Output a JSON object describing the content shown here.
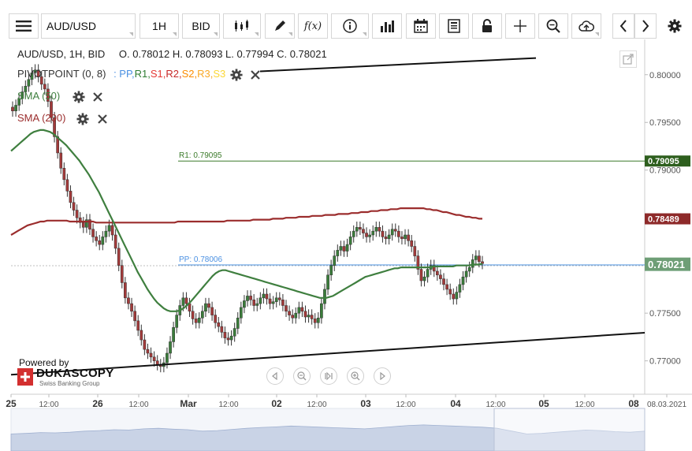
{
  "toolbar": {
    "symbol": "AUD/USD",
    "timeframe": "1H",
    "price_type": "BID",
    "fx_label": "f(x)"
  },
  "header": {
    "title": "AUD/USD, 1H, BID",
    "ohlc": "O. 0.78012 H. 0.78093 L. 0.77994 C. 0.78021"
  },
  "legend": {
    "pivot_name": "PIVOTPOINT (0, 8)",
    "pivot_parts": [
      {
        "label": ": PP,",
        "color": "#4a90e2"
      },
      {
        "label": " R1,",
        "color": "#2e7d32"
      },
      {
        "label": " S1,",
        "color": "#e53935"
      },
      {
        "label": " R2,",
        "color": "#c62828"
      },
      {
        "label": " S2,",
        "color": "#fb8c00"
      },
      {
        "label": " R3,",
        "color": "#f9a825"
      },
      {
        "label": " S3",
        "color": "#fdd835"
      }
    ],
    "sma50": "SMA (50)",
    "sma200": "SMA (200)"
  },
  "levels": {
    "r1_label": "R1: 0.79095",
    "pp_label": "PP: 0.78006"
  },
  "badges": {
    "r1": "0.79095",
    "sma200": "0.78489",
    "last": "0.78021"
  },
  "branding": {
    "powered_by": "Powered by",
    "brand": "DUKASCOPY",
    "tagline": "Swiss Banking Group"
  },
  "colors": {
    "up": "#3a7d3a",
    "down": "#a33a3a",
    "sma50": "#3f7f3f",
    "sma200": "#9b2d2d",
    "pp": "#4a90e2",
    "r1": "#3b7a2a"
  },
  "chart_data": {
    "type": "candlestick",
    "y_ticks": [
      "0.80000",
      "0.79500",
      "0.79000",
      "0.78500",
      "0.78000",
      "0.77500",
      "0.77000"
    ],
    "x_ticks": [
      "25",
      "12:00",
      "26",
      "12:00",
      "Mar",
      "12:00",
      "02",
      "12:00",
      "03",
      "12:00",
      "04",
      "12:00",
      "05",
      "12:00",
      "08",
      "08.03.2021"
    ],
    "ylim": [
      0.7665,
      0.8037
    ],
    "r1": 0.79095,
    "pp": 0.78006,
    "last": 0.78021,
    "sma200_last": 0.78489,
    "closes": [
      0.7962,
      0.7968,
      0.7975,
      0.7982,
      0.7988,
      0.7995,
      0.8002,
      0.8005,
      0.7998,
      0.799,
      0.7985,
      0.7972,
      0.7955,
      0.7935,
      0.7918,
      0.7902,
      0.789,
      0.7878,
      0.7866,
      0.7858,
      0.785,
      0.7845,
      0.784,
      0.7848,
      0.7838,
      0.783,
      0.7826,
      0.7822,
      0.783,
      0.7836,
      0.7842,
      0.7832,
      0.7818,
      0.78,
      0.7782,
      0.7766,
      0.776,
      0.7752,
      0.7742,
      0.7732,
      0.7722,
      0.7712,
      0.7708,
      0.7704,
      0.77,
      0.7696,
      0.7694,
      0.7698,
      0.7708,
      0.772,
      0.7735,
      0.7748,
      0.7758,
      0.7766,
      0.776,
      0.7752,
      0.7744,
      0.774,
      0.7745,
      0.7752,
      0.776,
      0.7756,
      0.7748,
      0.774,
      0.7736,
      0.773,
      0.7724,
      0.7722,
      0.7726,
      0.7734,
      0.7745,
      0.7756,
      0.7763,
      0.7768,
      0.7764,
      0.7758,
      0.776,
      0.7766,
      0.777,
      0.7765,
      0.776,
      0.7762,
      0.7766,
      0.7764,
      0.7758,
      0.7752,
      0.7748,
      0.7745,
      0.775,
      0.7756,
      0.7752,
      0.7746,
      0.7748,
      0.7744,
      0.774,
      0.7745,
      0.776,
      0.7775,
      0.779,
      0.78,
      0.781,
      0.7816,
      0.782,
      0.7815,
      0.7822,
      0.783,
      0.7836,
      0.784,
      0.7838,
      0.7834,
      0.783,
      0.7832,
      0.7836,
      0.784,
      0.7836,
      0.783,
      0.7828,
      0.7832,
      0.7838,
      0.7836,
      0.783,
      0.7828,
      0.7832,
      0.7826,
      0.782,
      0.781,
      0.7796,
      0.7784,
      0.7788,
      0.7796,
      0.78,
      0.7794,
      0.779,
      0.7786,
      0.778,
      0.7775,
      0.777,
      0.7765,
      0.7772,
      0.778,
      0.7788,
      0.7794,
      0.7798,
      0.7806,
      0.781,
      0.7804,
      0.7802
    ],
    "sma50": [
      0.792,
      0.7923,
      0.7926,
      0.7929,
      0.7932,
      0.7935,
      0.7938,
      0.794,
      0.7941,
      0.7942,
      0.7942,
      0.7941,
      0.794,
      0.7938,
      0.7935,
      0.7932,
      0.7929,
      0.7926,
      0.7922,
      0.7918,
      0.7914,
      0.791,
      0.7905,
      0.79,
      0.7895,
      0.7889,
      0.7883,
      0.7877,
      0.787,
      0.7863,
      0.7856,
      0.7849,
      0.7842,
      0.7835,
      0.7828,
      0.7821,
      0.7814,
      0.7807,
      0.78,
      0.7793,
      0.7787,
      0.7781,
      0.7775,
      0.777,
      0.7765,
      0.7761,
      0.7758,
      0.7755,
      0.7753,
      0.7752,
      0.7752,
      0.7752,
      0.7753,
      0.7755,
      0.7758,
      0.7761,
      0.7765,
      0.7769,
      0.7773,
      0.7777,
      0.7781,
      0.7785,
      0.7789,
      0.7792,
      0.7794,
      0.7795,
      0.7795,
      0.7794,
      0.7793,
      0.7792,
      0.7791,
      0.779,
      0.7789,
      0.7788,
      0.7787,
      0.7786,
      0.7785,
      0.7784,
      0.7783,
      0.7782,
      0.7781,
      0.778,
      0.7779,
      0.7778,
      0.7777,
      0.7776,
      0.7775,
      0.7774,
      0.7773,
      0.7772,
      0.7771,
      0.777,
      0.7769,
      0.7768,
      0.7767,
      0.7766,
      0.7766,
      0.7766,
      0.7767,
      0.7768,
      0.777,
      0.7772,
      0.7774,
      0.7776,
      0.7778,
      0.778,
      0.7782,
      0.7784,
      0.7786,
      0.7788,
      0.7789,
      0.779,
      0.7791,
      0.7792,
      0.7793,
      0.7794,
      0.7795,
      0.7796,
      0.7797,
      0.7797,
      0.7798,
      0.7798,
      0.7798,
      0.7798,
      0.7798,
      0.7798,
      0.7798,
      0.7798,
      0.7798,
      0.7798,
      0.7799,
      0.7799,
      0.7799,
      0.7799,
      0.7799,
      0.7799,
      0.7799,
      0.78,
      0.78,
      0.78,
      0.78,
      0.78,
      0.7801,
      0.7801,
      0.7801,
      0.7802
    ],
    "sma200": [
      0.7832,
      0.7834,
      0.7836,
      0.7838,
      0.784,
      0.7842,
      0.7843,
      0.7844,
      0.7845,
      0.7846,
      0.7846,
      0.7847,
      0.7847,
      0.7847,
      0.7847,
      0.7847,
      0.7847,
      0.7847,
      0.7846,
      0.7846,
      0.7846,
      0.7846,
      0.7846,
      0.7846,
      0.7846,
      0.7846,
      0.7845,
      0.7845,
      0.7845,
      0.7845,
      0.7845,
      0.7845,
      0.7845,
      0.7845,
      0.7845,
      0.7845,
      0.7845,
      0.7845,
      0.7845,
      0.7845,
      0.7845,
      0.7845,
      0.7845,
      0.7845,
      0.7845,
      0.7845,
      0.7845,
      0.7845,
      0.7845,
      0.7845,
      0.7845,
      0.7846,
      0.7846,
      0.7846,
      0.7846,
      0.7846,
      0.7846,
      0.7846,
      0.7846,
      0.7846,
      0.7846,
      0.7846,
      0.7846,
      0.7846,
      0.7846,
      0.7846,
      0.7847,
      0.7847,
      0.7847,
      0.7847,
      0.7847,
      0.7847,
      0.7847,
      0.7847,
      0.7848,
      0.7848,
      0.7848,
      0.7848,
      0.7848,
      0.7848,
      0.7849,
      0.7849,
      0.7849,
      0.7849,
      0.785,
      0.785,
      0.785,
      0.785,
      0.7851,
      0.7851,
      0.7851,
      0.7851,
      0.7852,
      0.7852,
      0.7852,
      0.7852,
      0.7853,
      0.7853,
      0.7853,
      0.7853,
      0.7854,
      0.7854,
      0.7854,
      0.7854,
      0.7855,
      0.7855,
      0.7855,
      0.7856,
      0.7856,
      0.7856,
      0.7857,
      0.7857,
      0.7857,
      0.7858,
      0.7858,
      0.7858,
      0.7859,
      0.7859,
      0.7859,
      0.786,
      0.786,
      0.786,
      0.786,
      0.786,
      0.786,
      0.786,
      0.786,
      0.7859,
      0.7859,
      0.7858,
      0.7858,
      0.7857,
      0.7856,
      0.7856,
      0.7855,
      0.7854,
      0.7853,
      0.7853,
      0.7852,
      0.7851,
      0.7851,
      0.785,
      0.785,
      0.7849,
      0.7849
    ]
  }
}
